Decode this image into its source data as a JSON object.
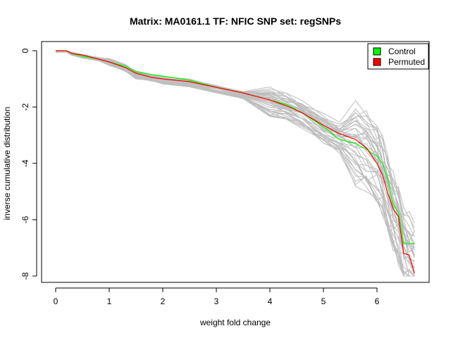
{
  "chart_data": {
    "type": "line",
    "title": "Matrix: MA0161.1 TF: NFIC SNP set: regSNPs",
    "xlabel": "weight fold change",
    "ylabel": "inverse cumulative distribution",
    "xlim": [
      0,
      6.7
    ],
    "ylim": [
      -8,
      0
    ],
    "x_ticks": [
      "0",
      "1",
      "2",
      "3",
      "4",
      "5",
      "6"
    ],
    "y_ticks": [
      "0",
      "-2",
      "-4",
      "-6",
      "-8"
    ],
    "grid": false,
    "legend_position": "top-right",
    "colors": {
      "control": "#00ff00",
      "permuted": "#ff0000",
      "background_runs": "#bebebe"
    },
    "series": [
      {
        "name": "Control",
        "color": "#00ff00",
        "x": [
          0,
          0.2,
          0.3,
          0.5,
          0.8,
          1.0,
          1.3,
          1.5,
          1.8,
          2.0,
          2.5,
          3.0,
          3.5,
          4.0,
          4.3,
          4.6,
          5.0,
          5.3,
          5.6,
          5.8,
          6.0,
          6.1,
          6.2,
          6.3,
          6.4,
          6.5,
          6.6,
          6.7
        ],
        "y": [
          0,
          0,
          -0.1,
          -0.2,
          -0.3,
          -0.4,
          -0.55,
          -0.75,
          -0.85,
          -0.9,
          -1.05,
          -1.3,
          -1.5,
          -1.75,
          -1.9,
          -2.2,
          -2.7,
          -3.15,
          -3.3,
          -3.5,
          -3.75,
          -4.0,
          -4.55,
          -5.45,
          -5.75,
          -6.85,
          -6.85,
          -6.85
        ]
      },
      {
        "name": "Permuted",
        "color": "#ff0000",
        "x": [
          0,
          0.2,
          0.3,
          0.5,
          0.8,
          1.0,
          1.3,
          1.5,
          1.8,
          2.0,
          2.5,
          3.0,
          3.5,
          4.0,
          4.3,
          4.6,
          5.0,
          5.3,
          5.6,
          5.8,
          6.0,
          6.1,
          6.2,
          6.3,
          6.4,
          6.5,
          6.6,
          6.7
        ],
        "y": [
          0,
          0,
          -0.1,
          -0.15,
          -0.3,
          -0.4,
          -0.6,
          -0.8,
          -0.95,
          -1.0,
          -1.1,
          -1.3,
          -1.5,
          -1.75,
          -1.95,
          -2.2,
          -2.65,
          -2.95,
          -3.15,
          -3.45,
          -4.0,
          -4.4,
          -5.05,
          -5.6,
          -5.9,
          -7.2,
          -7.25,
          -7.9
        ]
      }
    ],
    "background_runs": {
      "count": 40,
      "color": "#bebebe",
      "base_x": [
        0,
        0.2,
        0.3,
        0.5,
        0.8,
        1.0,
        1.3,
        1.5,
        1.8,
        2.0,
        2.5,
        3.0,
        3.5,
        4.0,
        4.3,
        4.6,
        5.0,
        5.3,
        5.6,
        5.8,
        6.0,
        6.1,
        6.2,
        6.3,
        6.4,
        6.5,
        6.6,
        6.7
      ],
      "base_y": [
        0,
        0,
        -0.1,
        -0.2,
        -0.3,
        -0.4,
        -0.6,
        -0.85,
        -0.95,
        -1.05,
        -1.15,
        -1.35,
        -1.55,
        -1.8,
        -1.95,
        -2.25,
        -2.75,
        -3.05,
        -3.25,
        -3.5,
        -3.95,
        -4.4,
        -5.0,
        -5.7,
        -6.1,
        -6.8,
        -7.2,
        -7.5
      ]
    },
    "legend": [
      {
        "label": "Control",
        "color": "#00ff00"
      },
      {
        "label": "Permuted",
        "color": "#ff0000"
      }
    ]
  }
}
